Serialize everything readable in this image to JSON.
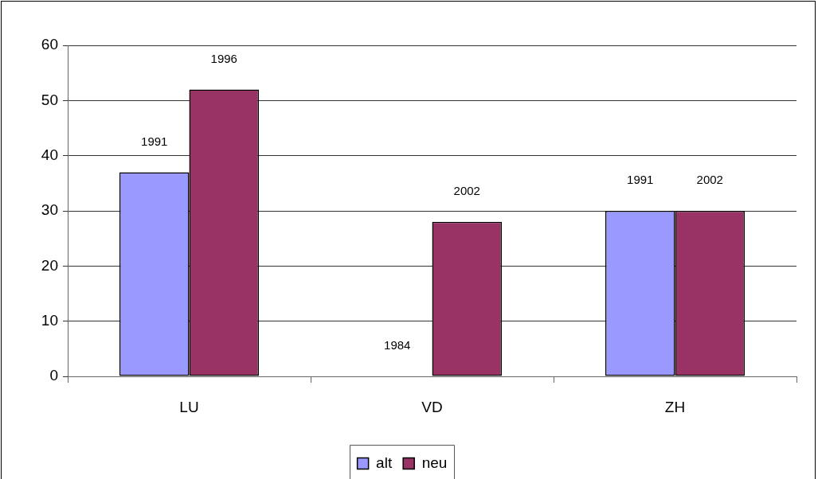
{
  "chart_data": {
    "type": "bar",
    "categories": [
      "LU",
      "VD",
      "ZH"
    ],
    "series": [
      {
        "name": "alt",
        "color": "#9999ff",
        "values": [
          37,
          0,
          30
        ]
      },
      {
        "name": "neu",
        "color": "#993366",
        "values": [
          52,
          28,
          30
        ]
      }
    ],
    "annotations": [
      {
        "text": "1991",
        "x": "LU",
        "y": 37
      },
      {
        "text": "1996",
        "x": "LU",
        "y": 52
      },
      {
        "text": "1984",
        "x": "VD",
        "y": 0
      },
      {
        "text": "2002",
        "x": "VD",
        "y": 28
      },
      {
        "text": "1991",
        "x": "ZH",
        "y": 30
      },
      {
        "text": "2002",
        "x": "ZH",
        "y": 30
      }
    ],
    "ylim": [
      0,
      60
    ],
    "yticks": [
      0,
      10,
      20,
      30,
      40,
      50,
      60
    ],
    "grid": "y",
    "legend": "bottom"
  }
}
